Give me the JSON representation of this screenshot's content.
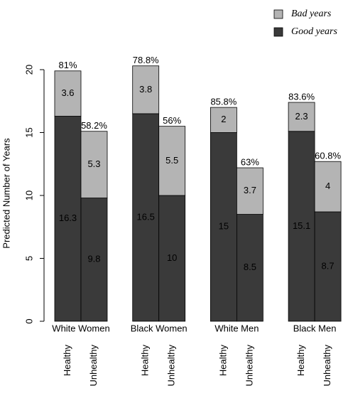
{
  "chart_data": {
    "type": "stacked-bar",
    "y_label": "Predicted Number of Years",
    "groups": [
      "White Women",
      "Black Women",
      "White Men",
      "Black Men"
    ],
    "categories": [
      "Healthy",
      "Unhealthy",
      "Healthy",
      "Unhealthy",
      "Healthy",
      "Unhealthy",
      "Healthy",
      "Unhealthy"
    ],
    "series": [
      {
        "name": "Good years",
        "color": "#3a3a3a",
        "values": [
          16.3,
          9.8,
          16.5,
          10,
          15,
          8.5,
          15.1,
          8.7
        ]
      },
      {
        "name": "Bad years",
        "color": "#b4b4b4",
        "values": [
          3.6,
          5.3,
          3.8,
          5.5,
          2,
          3.7,
          2.3,
          4
        ]
      }
    ],
    "good_share": {
      "values": [
        81,
        58.2,
        78.8,
        56,
        85.8,
        63,
        83.6,
        60.8
      ],
      "value_labels": [
        "81%",
        "58.2%",
        "78.8%",
        "56%",
        "85.8%",
        "63%",
        "83.6%",
        "60.8%"
      ]
    },
    "ylim": [
      0,
      20
    ],
    "yticks": [
      0,
      5,
      10,
      15,
      20
    ],
    "legend": "top-right"
  }
}
